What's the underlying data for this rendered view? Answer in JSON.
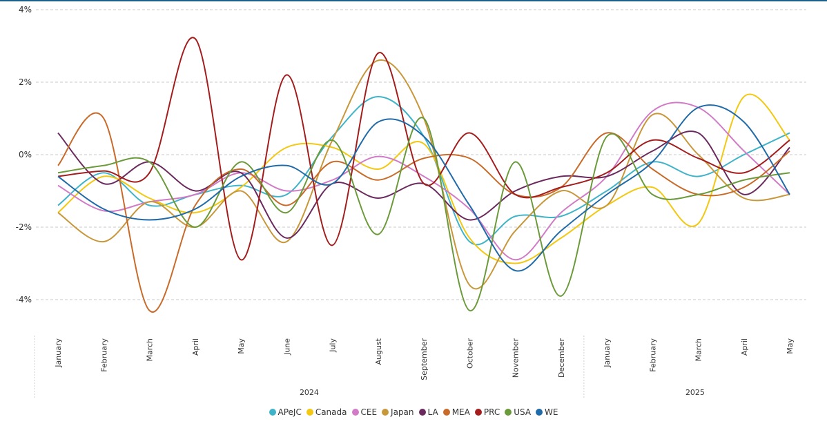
{
  "chart_data": {
    "type": "line",
    "title": "",
    "xlabel": "",
    "ylabel": "",
    "ylim": [
      -0.05,
      0.04
    ],
    "yticks": [
      {
        "v": 0.04,
        "label": "4%"
      },
      {
        "v": 0.02,
        "label": "2%"
      },
      {
        "v": 0,
        "label": "0%"
      },
      {
        "v": -0.02,
        "label": "-2%"
      },
      {
        "v": -0.04,
        "label": "-4%"
      }
    ],
    "categories": [
      "January",
      "February",
      "March",
      "April",
      "May",
      "June",
      "July",
      "August",
      "September",
      "October",
      "November",
      "December",
      "January",
      "February",
      "March",
      "April",
      "May"
    ],
    "years": [
      {
        "label": "2024",
        "count": 12
      },
      {
        "label": "2025",
        "count": 5
      }
    ],
    "grid": true,
    "legend_position": "bottom",
    "series": [
      {
        "name": "APeJC",
        "color": "#3fb4c8",
        "values": [
          -0.014,
          -0.005,
          -0.014,
          -0.011,
          -0.0085,
          -0.011,
          0.005,
          0.016,
          0.005,
          -0.024,
          -0.017,
          -0.017,
          -0.01,
          -0.002,
          -0.006,
          0.0,
          0.006
        ]
      },
      {
        "name": "Canada",
        "color": "#f2c811",
        "values": [
          -0.016,
          -0.006,
          -0.012,
          -0.016,
          -0.009,
          0.002,
          0.002,
          -0.004,
          0.003,
          -0.023,
          -0.03,
          -0.023,
          -0.014,
          -0.009,
          -0.019,
          0.016,
          0.004
        ]
      },
      {
        "name": "CEE",
        "color": "#d17bc6",
        "values": [
          -0.0085,
          -0.0155,
          -0.013,
          -0.011,
          -0.005,
          -0.01,
          -0.007,
          -0.0005,
          -0.006,
          -0.015,
          -0.029,
          -0.016,
          -0.006,
          0.012,
          0.013,
          0.001,
          -0.011
        ]
      },
      {
        "name": "Japan",
        "color": "#c8973a",
        "values": [
          -0.016,
          -0.024,
          -0.013,
          -0.02,
          -0.01,
          -0.024,
          0.004,
          0.026,
          0.01,
          -0.036,
          -0.021,
          -0.01,
          -0.014,
          0.011,
          0.0,
          -0.012,
          -0.011
        ]
      },
      {
        "name": "LA",
        "color": "#6b2a5e",
        "values": [
          0.006,
          -0.008,
          -0.002,
          -0.01,
          -0.005,
          -0.023,
          -0.008,
          -0.012,
          -0.008,
          -0.018,
          -0.01,
          -0.006,
          -0.006,
          0.001,
          0.006,
          -0.011,
          0.002
        ]
      },
      {
        "name": "MEA",
        "color": "#c86b2a",
        "values": [
          -0.003,
          0.01,
          -0.043,
          -0.014,
          -0.004,
          -0.014,
          -0.002,
          -0.007,
          -0.001,
          -0.001,
          -0.011,
          -0.009,
          0.006,
          -0.004,
          -0.011,
          -0.009,
          0.001
        ]
      },
      {
        "name": "PRC",
        "color": "#a31d1d",
        "values": [
          -0.006,
          -0.0045,
          -0.005,
          0.032,
          -0.029,
          0.022,
          -0.025,
          0.028,
          -0.008,
          0.006,
          -0.011,
          -0.009,
          -0.005,
          0.004,
          -0.001,
          -0.005,
          0.004
        ]
      },
      {
        "name": "USA",
        "color": "#6b9a3a",
        "values": [
          -0.005,
          -0.003,
          -0.002,
          -0.02,
          -0.002,
          -0.016,
          0.004,
          -0.022,
          0.01,
          -0.043,
          -0.002,
          -0.039,
          0.005,
          -0.011,
          -0.011,
          -0.007,
          -0.005
        ]
      },
      {
        "name": "WE",
        "color": "#1f6aa8",
        "values": [
          -0.006,
          -0.015,
          -0.018,
          -0.015,
          -0.006,
          -0.003,
          -0.008,
          0.009,
          0.005,
          -0.014,
          -0.032,
          -0.021,
          -0.011,
          -0.002,
          0.013,
          0.009,
          -0.011
        ]
      }
    ]
  }
}
